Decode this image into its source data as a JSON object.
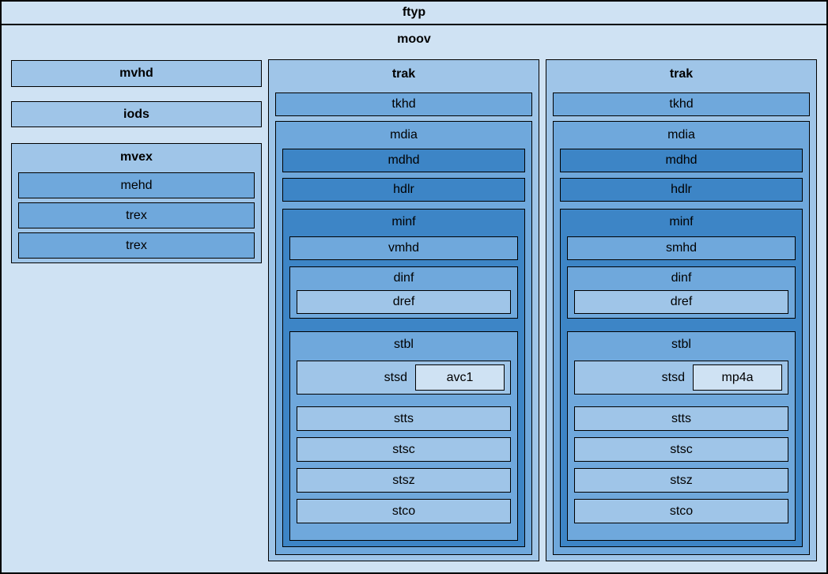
{
  "colors": {
    "level_lightest": "#cfe2f3",
    "level_light": "#9fc5e8",
    "level_medium": "#6fa8dc",
    "level_dark": "#3d85c6",
    "border": "#000000",
    "text": "#000000"
  },
  "ftyp": {
    "label": "ftyp"
  },
  "moov": {
    "label": "moov",
    "mvhd": {
      "label": "mvhd"
    },
    "iods": {
      "label": "iods"
    },
    "mvex": {
      "label": "mvex",
      "children": [
        "mehd",
        "trex",
        "trex"
      ]
    },
    "traks": [
      {
        "label": "trak",
        "tkhd": {
          "label": "tkhd"
        },
        "mdia": {
          "label": "mdia",
          "mdhd": {
            "label": "mdhd"
          },
          "hdlr": {
            "label": "hdlr"
          },
          "minf": {
            "label": "minf",
            "media_header": {
              "label": "vmhd"
            },
            "dinf": {
              "label": "dinf",
              "dref": {
                "label": "dref"
              }
            },
            "stbl": {
              "label": "stbl",
              "stsd": {
                "label": "stsd",
                "sample_entry": {
                  "label": "avc1"
                }
              },
              "tables": [
                "stts",
                "stsc",
                "stsz",
                "stco"
              ]
            }
          }
        }
      },
      {
        "label": "trak",
        "tkhd": {
          "label": "tkhd"
        },
        "mdia": {
          "label": "mdia",
          "mdhd": {
            "label": "mdhd"
          },
          "hdlr": {
            "label": "hdlr"
          },
          "minf": {
            "label": "minf",
            "media_header": {
              "label": "smhd"
            },
            "dinf": {
              "label": "dinf",
              "dref": {
                "label": "dref"
              }
            },
            "stbl": {
              "label": "stbl",
              "stsd": {
                "label": "stsd",
                "sample_entry": {
                  "label": "mp4a"
                }
              },
              "tables": [
                "stts",
                "stsc",
                "stsz",
                "stco"
              ]
            }
          }
        }
      }
    ]
  }
}
